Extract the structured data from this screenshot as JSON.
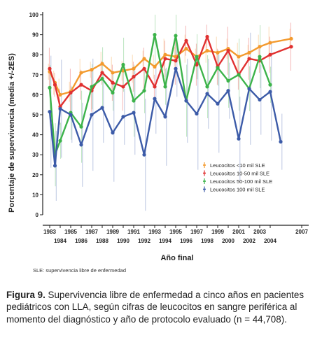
{
  "chart_data": {
    "type": "line",
    "title": "",
    "xlabel": "Año final",
    "ylabel": "Porcentaje de supervivencia (media +/-2ES)",
    "ylim": [
      0,
      100
    ],
    "yticks": [
      0,
      10,
      20,
      30,
      40,
      50,
      60,
      70,
      80,
      90,
      100
    ],
    "xlim": [
      1983,
      2007
    ],
    "xticks_upper": [
      "1983",
      "1985",
      "1987",
      "1989",
      "1991",
      "1993",
      "1995",
      "1997",
      "1999",
      "2001",
      "2003",
      "2007"
    ],
    "xticks_lower": [
      "1984",
      "1986",
      "1988",
      "1990",
      "1992",
      "1994",
      "1996",
      "1998",
      "2000",
      "2002",
      "2004"
    ],
    "grid": false,
    "legend_position": "bottom-right",
    "x": [
      1983,
      1983.5,
      1984,
      1984.7,
      1985,
      1986,
      1987,
      1988,
      1989,
      1990,
      1991,
      1992,
      1993,
      1994,
      1995,
      1996,
      1996.8,
      1997,
      1998,
      1999,
      2000,
      2001,
      2002,
      2003,
      2004,
      2005,
      2006,
      2007
    ],
    "series": [
      {
        "name": "Leucocitos <10 mil SLE",
        "color": "#f39a2e",
        "points": [
          [
            1983,
            71.5
          ],
          [
            1983.5,
            66
          ],
          [
            1984,
            60
          ],
          [
            1985,
            61.5
          ],
          [
            1986,
            71
          ],
          [
            1987,
            72.5
          ],
          [
            1988,
            75.5
          ],
          [
            1989,
            71
          ],
          [
            1990,
            72
          ],
          [
            1991,
            73
          ],
          [
            1992,
            78
          ],
          [
            1993,
            74
          ],
          [
            1994,
            80
          ],
          [
            1995,
            79
          ],
          [
            1996,
            83
          ],
          [
            1997,
            79
          ],
          [
            1998,
            82
          ],
          [
            1999,
            81
          ],
          [
            2000,
            83
          ],
          [
            2001,
            79
          ],
          [
            2002,
            81
          ],
          [
            2003,
            84
          ],
          [
            2004,
            86
          ],
          [
            2006,
            88
          ]
        ]
      },
      {
        "name": "Leucocitos 10-50 mil SLE",
        "color": "#e03030",
        "points": [
          [
            1983,
            73
          ],
          [
            1983.5,
            65
          ],
          [
            1984,
            54
          ],
          [
            1985,
            61
          ],
          [
            1986,
            65
          ],
          [
            1987,
            62
          ],
          [
            1988,
            71
          ],
          [
            1989,
            66
          ],
          [
            1990,
            64
          ],
          [
            1991,
            69
          ],
          [
            1992,
            73
          ],
          [
            1993,
            64
          ],
          [
            1994,
            78
          ],
          [
            1995,
            77
          ],
          [
            1996,
            87
          ],
          [
            1997,
            75
          ],
          [
            1998,
            89
          ],
          [
            1999,
            74
          ],
          [
            2000,
            82
          ],
          [
            2001,
            70
          ],
          [
            2002,
            78
          ],
          [
            2003,
            77
          ],
          [
            2004,
            80
          ],
          [
            2006,
            84
          ]
        ]
      },
      {
        "name": "Leucocitos 50-100 mil SLE",
        "color": "#3cb34a",
        "points": [
          [
            1983,
            63.5
          ],
          [
            1983.5,
            30
          ],
          [
            1984,
            37
          ],
          [
            1985,
            51
          ],
          [
            1986,
            44
          ],
          [
            1987,
            64
          ],
          [
            1988,
            68
          ],
          [
            1989,
            61
          ],
          [
            1990,
            75
          ],
          [
            1991,
            57
          ],
          [
            1992,
            62
          ],
          [
            1993,
            90
          ],
          [
            1994,
            64
          ],
          [
            1995,
            89.5
          ],
          [
            1996,
            57
          ],
          [
            1997,
            79
          ],
          [
            1998,
            64
          ],
          [
            1999,
            73.5
          ],
          [
            2000,
            67
          ],
          [
            2001,
            70
          ],
          [
            2002,
            63
          ],
          [
            2003,
            79
          ],
          [
            2004,
            65
          ]
        ]
      },
      {
        "name": "Leucocitos 100 mil SLE",
        "color": "#3c5ba8",
        "points": [
          [
            1983,
            51.5
          ],
          [
            1983.5,
            24.5
          ],
          [
            1984,
            53
          ],
          [
            1985,
            50
          ],
          [
            1986,
            35
          ],
          [
            1987,
            50
          ],
          [
            1988,
            53.5
          ],
          [
            1989,
            41
          ],
          [
            1990,
            49
          ],
          [
            1991,
            51
          ],
          [
            1992,
            30
          ],
          [
            1993,
            58
          ],
          [
            1994,
            49
          ],
          [
            1995,
            73
          ],
          [
            1996,
            57
          ],
          [
            1997,
            50.5
          ],
          [
            1998,
            60.5
          ],
          [
            1999,
            55.5
          ],
          [
            2000,
            62
          ],
          [
            2001,
            38
          ],
          [
            2002,
            63
          ],
          [
            2003,
            57.5
          ],
          [
            2004,
            61.5
          ],
          [
            2005,
            36.5
          ]
        ]
      }
    ]
  },
  "legend": {
    "items": [
      "Leucocitos <10 mil SLE",
      "Leucocitos 10-50 mil SLE",
      "Leucocitos 50-100 mil SLE",
      "Leucocitos 100 mil SLE"
    ]
  },
  "note": "SLE: supervivencia libre de enfermedad",
  "caption": {
    "label": "Figura 9.",
    "text": " Supervivencia libre de enfermedad a cinco años en pacientes pediátricos con LLA, según cifras de leucocitos en sangre periférica al momento del diagnóstico y año de protocolo evaluado (n = 44,708)."
  }
}
